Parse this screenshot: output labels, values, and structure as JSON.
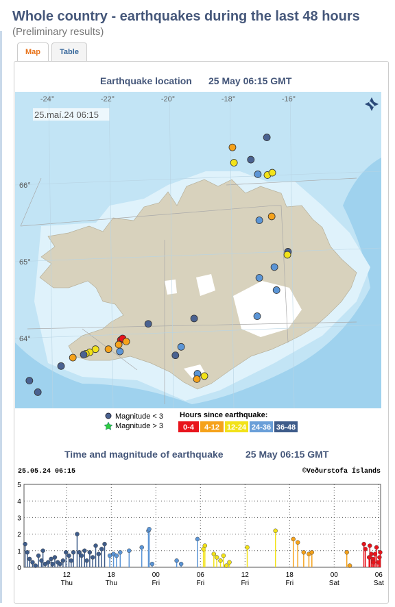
{
  "header": {
    "title": "Whole country - earthquakes during the last 48 hours",
    "subtitle": "(Preliminary results)"
  },
  "tabs": [
    "Map",
    "Table"
  ],
  "map": {
    "title": "Earthquake location",
    "time": "25 May 06:15 GMT",
    "stamp": "25.maí.24  06:15",
    "lon_ticks": [
      {
        "value": -24,
        "label": "-24°"
      },
      {
        "value": -22,
        "label": "-22°"
      },
      {
        "value": -20,
        "label": "-20°"
      },
      {
        "value": -18,
        "label": "-18°"
      },
      {
        "value": -16,
        "label": "-16°"
      }
    ],
    "lat_ticks": [
      {
        "value": 66,
        "label": "66°"
      },
      {
        "value": 65,
        "label": "65°"
      },
      {
        "value": 64,
        "label": "64°"
      }
    ],
    "quakes": [
      {
        "lon": -16.77,
        "lat": 66.62,
        "color": "#4a6291"
      },
      {
        "lon": -17.91,
        "lat": 66.49,
        "color": "#f5a21b"
      },
      {
        "lon": -17.86,
        "lat": 66.29,
        "color": "#f2e21a"
      },
      {
        "lon": -17.3,
        "lat": 66.33,
        "color": "#4a6291"
      },
      {
        "lon": -17.07,
        "lat": 66.14,
        "color": "#5b95d6"
      },
      {
        "lon": -16.75,
        "lat": 66.13,
        "color": "#f2e21a"
      },
      {
        "lon": -16.59,
        "lat": 66.16,
        "color": "#f2e21a"
      },
      {
        "lon": -16.61,
        "lat": 65.59,
        "color": "#f5a21b"
      },
      {
        "lon": -17.02,
        "lat": 65.54,
        "color": "#5b95d6"
      },
      {
        "lon": -16.07,
        "lat": 65.13,
        "color": "#4a6291"
      },
      {
        "lon": -16.09,
        "lat": 65.09,
        "color": "#f2e21a"
      },
      {
        "lon": -16.52,
        "lat": 64.93,
        "color": "#5b95d6"
      },
      {
        "lon": -17.02,
        "lat": 64.79,
        "color": "#5b95d6"
      },
      {
        "lon": -16.45,
        "lat": 64.63,
        "color": "#5b95d6"
      },
      {
        "lon": -17.09,
        "lat": 64.29,
        "color": "#5b95d6"
      },
      {
        "lon": -19.18,
        "lat": 64.26,
        "color": "#4a6291"
      },
      {
        "lon": -20.7,
        "lat": 64.19,
        "color": "#4a6291"
      },
      {
        "lon": -21.61,
        "lat": 63.98,
        "color": "#e8141c"
      },
      {
        "lon": -21.55,
        "lat": 64.0,
        "color": "#e8141c"
      },
      {
        "lon": -21.43,
        "lat": 63.96,
        "color": "#f5a21b"
      },
      {
        "lon": -21.68,
        "lat": 63.92,
        "color": "#f5a21b"
      },
      {
        "lon": -21.64,
        "lat": 63.83,
        "color": "#5b95d6"
      },
      {
        "lon": -22.02,
        "lat": 63.86,
        "color": "#f5a21b"
      },
      {
        "lon": -22.45,
        "lat": 63.86,
        "color": "#f2e21a"
      },
      {
        "lon": -22.64,
        "lat": 63.82,
        "color": "#f2e21a"
      },
      {
        "lon": -22.77,
        "lat": 63.8,
        "color": "#f2e21a"
      },
      {
        "lon": -22.84,
        "lat": 63.79,
        "color": "#4a6291"
      },
      {
        "lon": -23.2,
        "lat": 63.75,
        "color": "#f5a21b"
      },
      {
        "lon": -23.59,
        "lat": 63.64,
        "color": "#4a6291"
      },
      {
        "lon": -24.64,
        "lat": 63.45,
        "color": "#4a6291"
      },
      {
        "lon": -24.36,
        "lat": 63.3,
        "color": "#4a6291"
      },
      {
        "lon": -19.8,
        "lat": 63.78,
        "color": "#4a6291"
      },
      {
        "lon": -19.61,
        "lat": 63.89,
        "color": "#5b95d6"
      },
      {
        "lon": -19.07,
        "lat": 63.54,
        "color": "#5b95d6"
      },
      {
        "lon": -18.84,
        "lat": 63.51,
        "color": "#f2e21a"
      },
      {
        "lon": -19.09,
        "lat": 63.47,
        "color": "#f5a21b"
      }
    ]
  },
  "legend": {
    "small": "Magnitude < 3",
    "large": "Magnitude > 3",
    "hours_title": "Hours since earthquake:",
    "classes": [
      {
        "label": "0-4",
        "color": "#e8141c"
      },
      {
        "label": "4-12",
        "color": "#f5a21b"
      },
      {
        "label": "12-24",
        "color": "#f2e21a"
      },
      {
        "label": "24-36",
        "color": "#6a9fd8"
      },
      {
        "label": "36-48",
        "color": "#3e5c8a"
      }
    ]
  },
  "chart_data": {
    "type": "stem",
    "title": "Time and magnitude of earthquake",
    "time": "25 May 06:15 GMT",
    "stamp": "25.05.24 06:15",
    "credit": "©Veðurstofa Íslands",
    "xlim": [
      6.25,
      54.25
    ],
    "ylim": [
      0,
      5
    ],
    "yticks": [
      0,
      1,
      2,
      3,
      4,
      5
    ],
    "xticks": [
      {
        "value": 12,
        "label": "12"
      },
      {
        "value": 18,
        "label": "18"
      },
      {
        "value": 24,
        "label": "00"
      },
      {
        "value": 30,
        "label": "06"
      },
      {
        "value": 36,
        "label": "12"
      },
      {
        "value": 42,
        "label": "18"
      },
      {
        "value": 48,
        "label": "00"
      },
      {
        "value": 54,
        "label": "06"
      }
    ],
    "xtick_days": [
      "Thu",
      "Thu",
      "Fri",
      "Fri",
      "Fri",
      "Fri",
      "Sat",
      "Sat"
    ],
    "grid": true,
    "series": [
      {
        "color": "#3e5c8a",
        "x": [
          6.4,
          6.7,
          7.0,
          7.4,
          7.8,
          8.2,
          8.6,
          8.8,
          9.1,
          9.5,
          9.9,
          10.1,
          10.4,
          10.8,
          11.1,
          11.5,
          11.9,
          12.3,
          12.6,
          12.9,
          13.4,
          13.7,
          14.0,
          14.4,
          14.7,
          15.1,
          15.5,
          15.9,
          16.3,
          16.7,
          17.1
        ],
        "values": [
          1.4,
          0.9,
          0.5,
          0.3,
          0.1,
          0.7,
          0.4,
          1.0,
          0.2,
          0.3,
          0.5,
          0.2,
          0.6,
          0.3,
          0.2,
          0.4,
          0.9,
          0.7,
          0.4,
          0.9,
          2.0,
          0.9,
          0.7,
          1.0,
          0.4,
          0.9,
          0.6,
          1.3,
          0.8,
          1.1,
          1.4
        ]
      },
      {
        "color": "#5b95d6",
        "x": [
          17.8,
          18.3,
          18.7,
          19.2,
          20.4,
          22.1,
          23.0,
          23.1,
          23.5,
          26.8,
          27.4,
          29.6
        ],
        "values": [
          0.7,
          0.8,
          0.7,
          0.9,
          1.0,
          1.2,
          2.2,
          2.3,
          0.2,
          0.4,
          0.2,
          1.7
        ]
      },
      {
        "color": "#f2e21a",
        "x": [
          30.4,
          30.6,
          31.8,
          32.2,
          32.7,
          33.1,
          33.5,
          33.9,
          36.3,
          40.1
        ],
        "values": [
          1.1,
          1.3,
          0.8,
          0.6,
          0.4,
          0.7,
          0.1,
          0.3,
          1.2,
          2.2
        ]
      },
      {
        "color": "#f5a21b",
        "x": [
          42.5,
          43.1,
          43.9,
          44.6,
          45.0,
          49.7,
          50.1
        ],
        "values": [
          1.7,
          1.5,
          0.9,
          0.8,
          0.9,
          0.9,
          0.1
        ]
      },
      {
        "color": "#e8141c",
        "x": [
          52.0,
          52.2,
          52.7,
          52.8,
          53.0,
          53.2,
          53.3,
          53.5,
          53.7,
          53.9,
          54.1,
          54.2
        ],
        "values": [
          1.4,
          1.1,
          0.6,
          1.3,
          0.8,
          0.5,
          0.3,
          0.8,
          1.2,
          0.3,
          0.6,
          0.9
        ]
      }
    ]
  }
}
